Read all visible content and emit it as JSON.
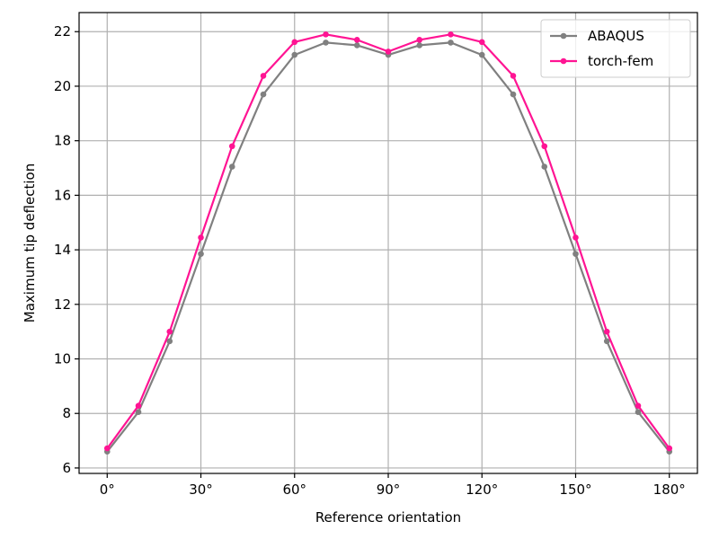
{
  "chart_data": {
    "type": "line",
    "title": "",
    "xlabel": "Reference orientation",
    "ylabel": "Maximum tip deflection",
    "x": [
      0,
      10,
      20,
      30,
      40,
      50,
      60,
      70,
      80,
      90,
      100,
      110,
      120,
      130,
      140,
      150,
      160,
      170,
      180
    ],
    "xlim": [
      -9,
      189
    ],
    "ylim": [
      5.8,
      22.7
    ],
    "xticks": [
      0,
      30,
      60,
      90,
      120,
      150,
      180
    ],
    "xtick_labels": [
      "0°",
      "30°",
      "60°",
      "90°",
      "120°",
      "150°",
      "180°"
    ],
    "yticks": [
      6,
      8,
      10,
      12,
      14,
      16,
      18,
      20,
      22
    ],
    "ytick_labels": [
      "6",
      "8",
      "10",
      "12",
      "14",
      "16",
      "18",
      "20",
      "22"
    ],
    "grid": true,
    "legend_position": "top-right",
    "series": [
      {
        "name": "ABAQUS",
        "color": "#808080",
        "values": [
          6.6,
          8.05,
          10.65,
          13.85,
          17.05,
          19.7,
          21.15,
          21.6,
          21.5,
          21.15,
          21.5,
          21.6,
          21.15,
          19.7,
          17.05,
          13.85,
          10.65,
          8.05,
          6.6
        ]
      },
      {
        "name": "torch-fem",
        "color": "#ff1493",
        "values": [
          6.72,
          8.28,
          11.0,
          14.45,
          17.8,
          20.38,
          21.62,
          21.9,
          21.7,
          21.27,
          21.7,
          21.9,
          21.62,
          20.38,
          17.8,
          14.45,
          11.0,
          8.28,
          6.72
        ]
      }
    ]
  }
}
